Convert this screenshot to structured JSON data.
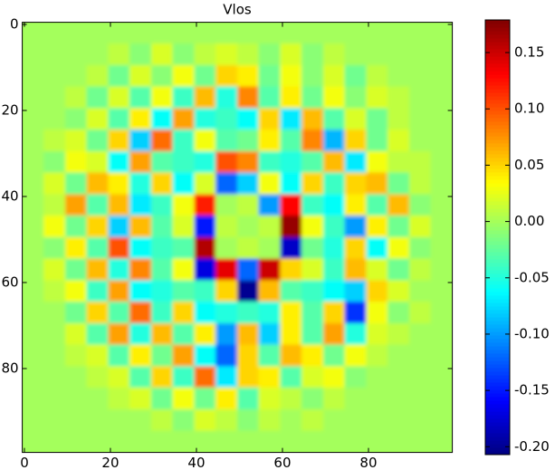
{
  "chart_data": {
    "type": "heatmap",
    "title": "Vlos",
    "colormap": "jet",
    "x": [
      0,
      5,
      10,
      15,
      20,
      25,
      30,
      35,
      40,
      45,
      50,
      55,
      60,
      65,
      70,
      75,
      80,
      85,
      90,
      95
    ],
    "y": [
      0,
      5,
      10,
      15,
      20,
      25,
      30,
      35,
      40,
      45,
      50,
      55,
      60,
      65,
      70,
      75,
      80,
      85,
      90,
      95
    ],
    "z": [
      [
        0,
        0,
        0,
        0,
        0,
        0,
        0,
        0,
        0,
        0,
        0,
        0,
        0,
        0,
        0,
        0,
        0,
        0,
        0,
        0
      ],
      [
        0,
        0,
        0,
        0,
        0.01,
        -0.01,
        0.02,
        -0.01,
        0.01,
        0.02,
        0.01,
        -0.01,
        0.02,
        -0.01,
        0.01,
        0,
        0,
        0,
        0,
        0
      ],
      [
        0,
        0,
        0,
        0.01,
        -0.02,
        0.02,
        -0.01,
        0.03,
        -0.02,
        0.05,
        0.04,
        -0.02,
        0.03,
        -0.01,
        0.02,
        -0.02,
        0.01,
        0,
        0,
        0
      ],
      [
        0,
        0,
        0.01,
        -0.02,
        0.02,
        -0.03,
        0.03,
        -0.04,
        0.06,
        -0.05,
        0.08,
        -0.03,
        0.04,
        -0.02,
        0.03,
        -0.01,
        0.02,
        0.01,
        0,
        0
      ],
      [
        0,
        0,
        -0.01,
        0.02,
        -0.03,
        0.04,
        -0.06,
        0.07,
        -0.05,
        -0.04,
        -0.06,
        0.05,
        -0.07,
        0.06,
        -0.03,
        0.02,
        -0.02,
        0.01,
        0,
        0
      ],
      [
        0,
        0.01,
        0.02,
        -0.02,
        0.05,
        -0.08,
        0.09,
        -0.04,
        0.03,
        -0.03,
        -0.02,
        0.04,
        -0.03,
        0.08,
        -0.09,
        0.05,
        -0.02,
        0.02,
        0,
        0
      ],
      [
        0,
        -0.01,
        0.03,
        0.02,
        -0.06,
        0.07,
        -0.03,
        -0.04,
        -0.05,
        0.1,
        0.08,
        -0.04,
        -0.05,
        -0.03,
        0.06,
        -0.07,
        0.03,
        0.01,
        0.01,
        0
      ],
      [
        0,
        0.02,
        -0.02,
        0.06,
        0.04,
        -0.05,
        0.05,
        -0.06,
        0.02,
        -0.12,
        -0.08,
        0.03,
        -0.06,
        0.05,
        -0.04,
        0.05,
        0.06,
        -0.02,
        0.01,
        0
      ],
      [
        0,
        0.01,
        0.07,
        -0.03,
        0.06,
        -0.07,
        -0.04,
        0.03,
        0.12,
        0,
        0.01,
        -0.1,
        0.13,
        -0.04,
        -0.06,
        0.04,
        -0.03,
        0.06,
        -0.01,
        0
      ],
      [
        0,
        0.03,
        -0.02,
        0.05,
        -0.08,
        0.06,
        -0.03,
        0.02,
        -0.15,
        0.01,
        0,
        0.01,
        0.17,
        0.03,
        -0.04,
        -0.1,
        0.04,
        -0.02,
        0.02,
        0
      ],
      [
        0,
        -0.01,
        0.04,
        -0.03,
        0.1,
        -0.06,
        -0.04,
        -0.03,
        0.16,
        0,
        0.01,
        0,
        -0.18,
        -0.02,
        -0.05,
        0.05,
        -0.06,
        0.03,
        -0.01,
        0
      ],
      [
        0,
        0.02,
        -0.02,
        0.06,
        -0.05,
        0.08,
        -0.03,
        0.03,
        -0.17,
        0.14,
        -0.12,
        0.15,
        0.05,
        0.02,
        -0.04,
        0.06,
        0.02,
        -0.02,
        0.01,
        0
      ],
      [
        0,
        0.01,
        0.03,
        -0.04,
        0.07,
        -0.06,
        -0.05,
        -0.03,
        -0.04,
        0.05,
        -0.2,
        0.06,
        -0.03,
        -0.04,
        -0.06,
        -0.08,
        0.05,
        0.02,
        0,
        0
      ],
      [
        0,
        0,
        -0.02,
        0.05,
        -0.03,
        0.09,
        -0.04,
        0.05,
        -0.06,
        -0.05,
        -0.04,
        -0.05,
        0.04,
        -0.03,
        0.05,
        -0.14,
        0.03,
        -0.01,
        0.01,
        0
      ],
      [
        0,
        0,
        0.02,
        -0.03,
        0.07,
        -0.05,
        0.06,
        -0.03,
        0.04,
        -0.1,
        0.06,
        -0.08,
        0.04,
        -0.03,
        0.07,
        -0.05,
        0.02,
        0.01,
        0,
        0
      ],
      [
        0,
        0,
        0.01,
        0.02,
        -0.03,
        0.04,
        -0.02,
        0.07,
        -0.06,
        -0.12,
        0.05,
        -0.03,
        0.06,
        0.04,
        -0.02,
        0.03,
        0.01,
        0,
        0,
        0
      ],
      [
        0,
        0,
        0,
        0.01,
        0.02,
        -0.03,
        0.05,
        -0.04,
        0.09,
        -0.07,
        0.05,
        0.04,
        -0.03,
        0.02,
        0.03,
        -0.01,
        0,
        0,
        0,
        0
      ],
      [
        0,
        0,
        0,
        0,
        0.01,
        0.02,
        -0.02,
        0.03,
        -0.02,
        0.04,
        -0.03,
        0.02,
        0.01,
        -0.01,
        0.01,
        0,
        0,
        0,
        0,
        0
      ],
      [
        0,
        0,
        0,
        0,
        0,
        0,
        0.01,
        -0.01,
        0.02,
        0.01,
        -0.01,
        0.01,
        0,
        0.01,
        0,
        0,
        0,
        0,
        0,
        0
      ],
      [
        0,
        0,
        0,
        0,
        0,
        0,
        0,
        0,
        0,
        0,
        0,
        0,
        0,
        0,
        0,
        0,
        0,
        0,
        0,
        0
      ]
    ],
    "xlim": [
      -0.5,
      99.5
    ],
    "ylim": [
      99.5,
      -0.5
    ],
    "xticks": [
      0,
      20,
      40,
      60,
      80
    ],
    "yticks": [
      0,
      20,
      40,
      60,
      80
    ],
    "clim": [
      -0.207,
      0.179
    ],
    "cticks": [
      {
        "value": -0.2,
        "label": "-0.20"
      },
      -0.15,
      {
        "value": -0.1,
        "label": "-0.10"
      },
      -0.05,
      {
        "value": 0,
        "label": "0.00"
      },
      0.05,
      {
        "value": 0.1,
        "label": "0.10"
      },
      0.15
    ]
  }
}
